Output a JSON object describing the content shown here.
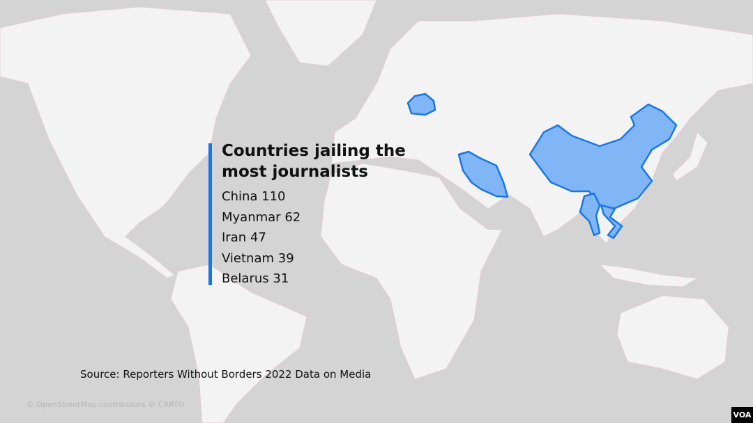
{
  "title": "Countries jailing the most journalists",
  "items": [
    {
      "country": "China",
      "count": 110
    },
    {
      "country": "Myanmar",
      "count": 62
    },
    {
      "country": "Iran",
      "count": 47
    },
    {
      "country": "Vietnam",
      "count": 39
    },
    {
      "country": "Belarus",
      "count": 31
    }
  ],
  "source": "Source: Reporters Without Borders 2022 Data on Media",
  "attribution": "© OpenStreetMap contributors © CARTO",
  "logo": "VOA"
}
